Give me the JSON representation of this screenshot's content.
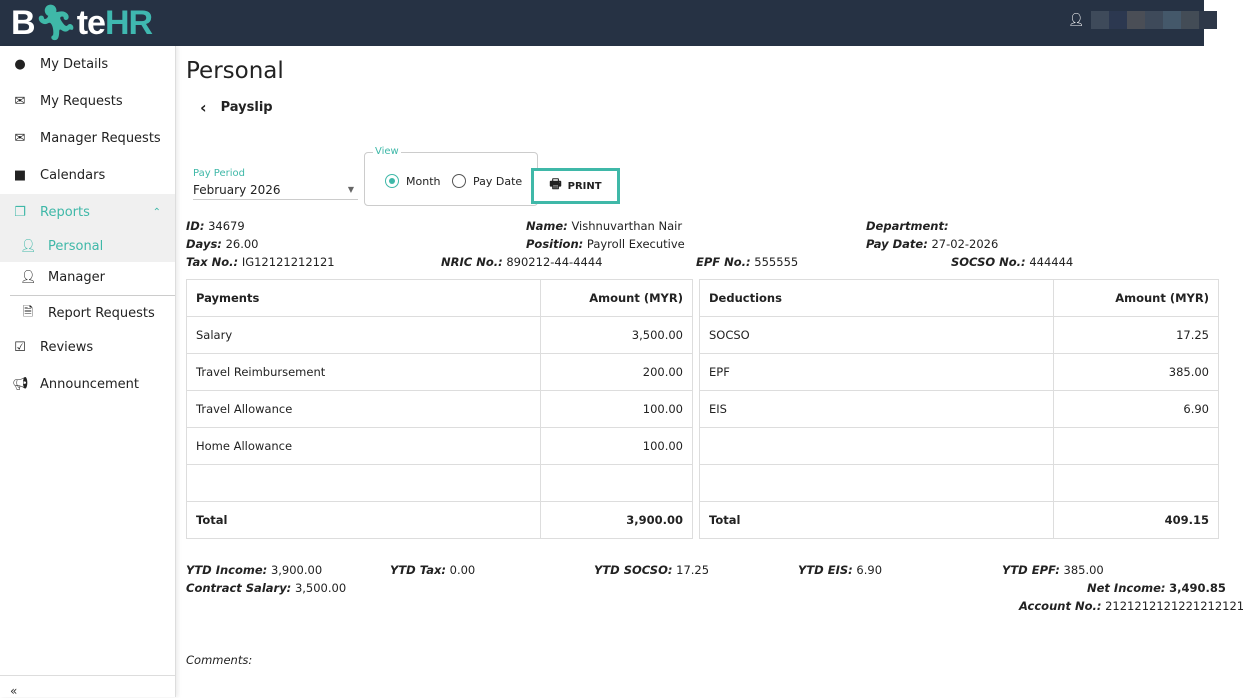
{
  "header": {
    "logo": "ByteHR",
    "logo_part1": "B",
    "logo_part2": "te",
    "logo_part3": "HR",
    "user_icon": "user-icon",
    "user_name_redacted": true
  },
  "sidebar": {
    "items": [
      {
        "label": "My Details",
        "icon": "user-circle-icon"
      },
      {
        "label": "My Requests",
        "icon": "envelope-icon"
      },
      {
        "label": "Manager Requests",
        "icon": "envelope-check-icon"
      },
      {
        "label": "Calendars",
        "icon": "calendar-icon"
      },
      {
        "label": "Reports",
        "icon": "copy-icon",
        "expanded": true
      },
      {
        "label": "Personal",
        "icon": "user-icon",
        "active": true
      },
      {
        "label": "Manager",
        "icon": "user-tie-icon"
      },
      {
        "label": "Report Requests",
        "icon": "file-icon"
      },
      {
        "label": "Reviews",
        "icon": "reviews-icon"
      },
      {
        "label": "Announcement",
        "icon": "bullhorn-icon"
      }
    ],
    "collapse_icon": "double-chevron-left-icon"
  },
  "page": {
    "title": "Personal",
    "subtitle": "Payslip"
  },
  "filters": {
    "pay_period_label": "Pay Period",
    "pay_period_value": "February 2026",
    "view_label": "View",
    "view_options": [
      "Month",
      "Pay Date"
    ],
    "view_selected": "Month",
    "print_label": "PRINT"
  },
  "info": {
    "id_label": "ID:",
    "id": "34679",
    "name_label": "Name:",
    "name": "Vishnuvarthan Nair",
    "department_label": "Department:",
    "department": "",
    "days_label": "Days:",
    "days": "26.00",
    "position_label": "Position:",
    "position": "Payroll Executive",
    "pay_date_label": "Pay Date:",
    "pay_date": "27-02-2026",
    "tax_label": "Tax No.:",
    "tax": "IG12121212121",
    "nric_label": "NRIC No.:",
    "nric": "890212-44-4444",
    "epf_label": "EPF No.:",
    "epf": "555555",
    "socso_label": "SOCSO No.:",
    "socso": "444444"
  },
  "payments": {
    "headers": [
      "Payments",
      "Amount (MYR)"
    ],
    "rows": [
      [
        "Salary",
        "3,500.00"
      ],
      [
        "Travel Reimbursement",
        "200.00"
      ],
      [
        "Travel Allowance",
        "100.00"
      ],
      [
        "Home Allowance",
        "100.00"
      ],
      [
        "",
        ""
      ]
    ],
    "total": [
      "Total",
      "3,900.00"
    ]
  },
  "deductions": {
    "headers": [
      "Deductions",
      "Amount (MYR)"
    ],
    "rows": [
      [
        "SOCSO",
        "17.25"
      ],
      [
        "EPF",
        "385.00"
      ],
      [
        "EIS",
        "6.90"
      ],
      [
        "",
        ""
      ],
      [
        "",
        ""
      ]
    ],
    "total": [
      "Total",
      "409.15"
    ]
  },
  "ytd": {
    "income_label": "YTD Income:",
    "income": "3,900.00",
    "tax_label": "YTD Tax:",
    "tax": "0.00",
    "socso_label": "YTD SOCSO:",
    "socso": "17.25",
    "eis_label": "YTD EIS:",
    "eis": "6.90",
    "epf_label": "YTD EPF:",
    "epf": "385.00",
    "contract_label": "Contract Salary:",
    "contract": "3,500.00",
    "net_label": "Net Income:",
    "net": "3,490.85",
    "account_label": "Account No.:",
    "account": "2121212121221212121"
  },
  "comments_label": "Comments:",
  "colors": {
    "accent": "#3fb8a8",
    "header_bg": "#263244"
  }
}
